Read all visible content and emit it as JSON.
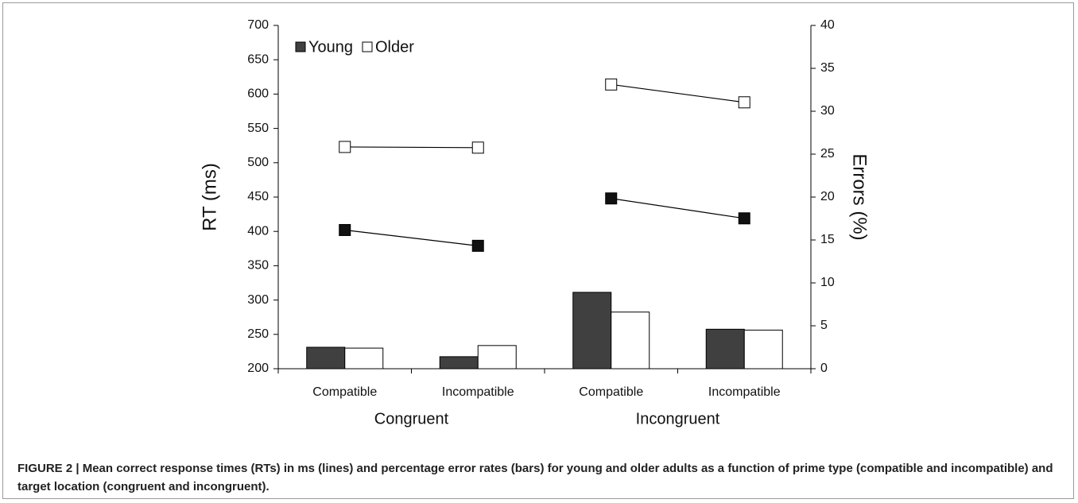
{
  "chart_data": {
    "type": "bar-line",
    "groups": [
      {
        "label": "Congruent",
        "categories": [
          "Compatible",
          "Incompatible"
        ]
      },
      {
        "label": "Incongruent",
        "categories": [
          "Compatible",
          "Incompatible"
        ]
      }
    ],
    "y_label": "RT (ms)",
    "y2_label": "Errors (%)",
    "ylim": [
      200,
      700
    ],
    "yticks": [
      200,
      250,
      300,
      350,
      400,
      450,
      500,
      550,
      600,
      650,
      700
    ],
    "y2lim": [
      0,
      40
    ],
    "y2ticks": [
      0,
      5,
      10,
      15,
      20,
      25,
      30,
      35,
      40
    ],
    "series": [
      {
        "name": "Young",
        "color": "#404040",
        "values": [
          402,
          379,
          448,
          419
        ],
        "error_values": [
          2.5,
          1.4,
          8.9,
          4.6
        ]
      },
      {
        "name": "Older",
        "color": "#ffffff",
        "values": [
          523,
          522,
          614,
          588
        ],
        "error_values": [
          2.4,
          2.7,
          6.6,
          4.5
        ]
      }
    ],
    "caption": "FIGURE 2 | Mean correct response times (RTs) in ms (lines) and percentage error rates (bars) for young and older adults as a function of prime type (compatible and incompatible) and target location (congruent and incongruent)."
  }
}
